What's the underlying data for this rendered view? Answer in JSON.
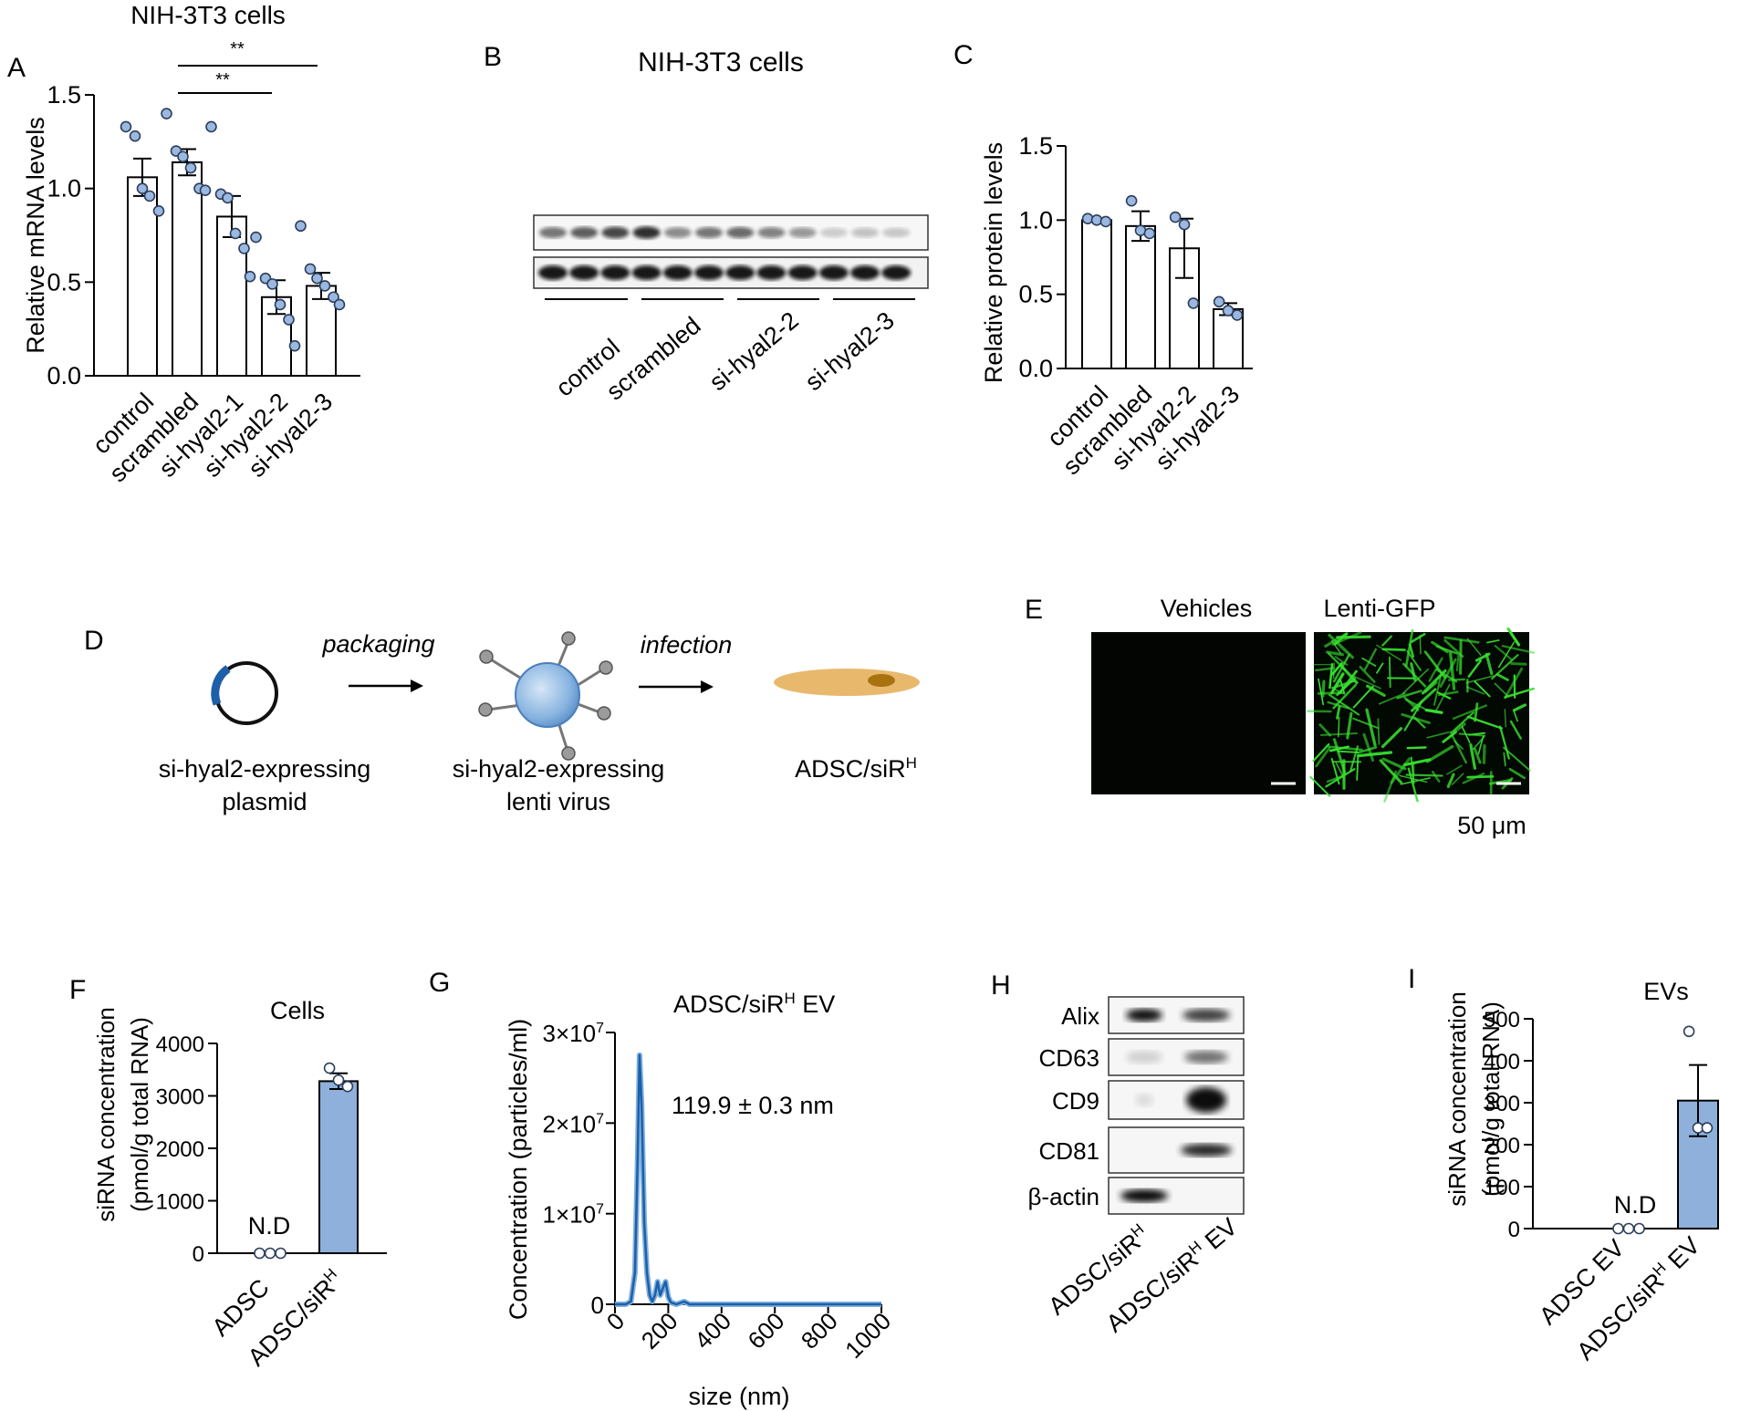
{
  "colors": {
    "bar_blue": "#8eb0da",
    "dot_blue": "#9bb8e0",
    "line_blue": "#1d5fa8",
    "gfp_green": "#38e030",
    "dark": "#050505"
  },
  "panels": {
    "A": {
      "letter": "A",
      "title": "NIH-3T3 cells",
      "sig": [
        "**",
        "**"
      ]
    },
    "B": {
      "letter": "B",
      "title": "NIH-3T3 cells",
      "groups": [
        "control",
        "scrambled",
        "si-hyal2-2",
        "si-hyal2-3"
      ]
    },
    "C": {
      "letter": "C"
    },
    "D": {
      "letter": "D",
      "step1": "packaging",
      "step2": "infection",
      "item1_line1": "si-hyal2-expressing",
      "item1_line2": "plasmid",
      "item2_line1": "si-hyal2-expressing",
      "item2_line2": "lenti virus",
      "item3": "ADSC/siR",
      "item3_sup": "H"
    },
    "E": {
      "letter": "E",
      "left_label": "Vehicles",
      "right_label": "Lenti-GFP",
      "scale": "50 μm"
    },
    "F": {
      "letter": "F",
      "title": "Cells",
      "nd": "N.D"
    },
    "G": {
      "letter": "G",
      "title_main": "ADSC/siR",
      "title_sup": "H",
      "title_tail": " EV",
      "annotation": "119.9 ± 0.3 nm"
    },
    "H": {
      "letter": "H",
      "bands": [
        "Alix",
        "CD63",
        "CD9",
        "CD81",
        "β-actin"
      ],
      "lane1": "ADSC/siR",
      "lane1_sup": "H",
      "lane2": "ADSC/siR",
      "lane2_sup": "H",
      "lane2_tail": " EV"
    },
    "I": {
      "letter": "I",
      "title": "EVs",
      "nd": "N.D"
    }
  },
  "chart_data": [
    {
      "id": "A",
      "type": "bar",
      "categories": [
        "control",
        "scrambled",
        "si-hyal2-1",
        "si-hyal2-2",
        "si-hyal2-3"
      ],
      "values": [
        1.06,
        1.14,
        0.85,
        0.42,
        0.48
      ],
      "errors": [
        0.1,
        0.07,
        0.11,
        0.09,
        0.07
      ],
      "points": [
        [
          1.33,
          1.28,
          1.0,
          0.96,
          0.88
        ],
        [
          1.4,
          1.2,
          1.17,
          1.11,
          1.0,
          0.99
        ],
        [
          1.33,
          0.97,
          0.95,
          0.76,
          0.68,
          0.53
        ],
        [
          0.74,
          0.52,
          0.49,
          0.38,
          0.3,
          0.16
        ],
        [
          0.8,
          0.57,
          0.52,
          0.48,
          0.42,
          0.38
        ]
      ],
      "ylabel": "Relative mRNA levels",
      "ylim": [
        0,
        1.5
      ],
      "yticks": [
        "0.0",
        "0.5",
        "1.0",
        "1.5"
      ]
    },
    {
      "id": "C",
      "type": "bar",
      "categories": [
        "control",
        "scrambled",
        "si-hyal2-2",
        "si-hyal2-3"
      ],
      "values": [
        1.0,
        0.96,
        0.81,
        0.4
      ],
      "errors": [
        0.01,
        0.1,
        0.2,
        0.04
      ],
      "points": [
        [
          1.01,
          1.0,
          0.99
        ],
        [
          1.13,
          0.93,
          0.91
        ],
        [
          1.02,
          0.97,
          0.44
        ],
        [
          0.45,
          0.39,
          0.36
        ]
      ],
      "ylabel": "Relative protein levels",
      "ylim": [
        0,
        1.5
      ],
      "yticks": [
        "0.0",
        "0.5",
        "1.0",
        "1.5"
      ]
    },
    {
      "id": "F",
      "type": "bar",
      "categories": [
        "ADSC",
        "ADSC/siRH"
      ],
      "values": [
        0,
        3280
      ],
      "errors": [
        0,
        150
      ],
      "points": [
        [
          0,
          0,
          0
        ],
        [
          3530,
          3300,
          3180
        ]
      ],
      "ylabel_lines": [
        "siRNA concentration",
        "(pmol/g total RNA)"
      ],
      "ylim": [
        0,
        4000
      ],
      "yticks": [
        "0",
        "1000",
        "2000",
        "3000",
        "4000"
      ]
    },
    {
      "id": "G",
      "type": "line",
      "xlabel": "size (nm)",
      "ylabel": "Concentration (particles/ml)",
      "xlim": [
        0,
        1000
      ],
      "ylim": [
        0,
        30000000
      ],
      "xticks": [
        "0",
        "200",
        "400",
        "600",
        "800",
        "1000"
      ],
      "yticks": [
        "0",
        "1×10",
        "2×10",
        "3×10"
      ],
      "ytick_exp": "7",
      "x": [
        0,
        40,
        60,
        75,
        85,
        92,
        100,
        110,
        120,
        130,
        140,
        150,
        160,
        170,
        180,
        190,
        200,
        210,
        230,
        260,
        280,
        300,
        400,
        1000
      ],
      "y": [
        0,
        0,
        300000,
        3500000,
        16000000,
        27500000,
        22000000,
        9000000,
        3500000,
        1000000,
        300000,
        1000000,
        2500000,
        1000000,
        1800000,
        2500000,
        800000,
        200000,
        0,
        300000,
        0,
        0,
        0,
        0
      ]
    },
    {
      "id": "I",
      "type": "bar",
      "categories": [
        "ADSC EV",
        "ADSC/siRH EV"
      ],
      "values": [
        0,
        305
      ],
      "errors": [
        0,
        85
      ],
      "points": [
        [
          0,
          0,
          0
        ],
        [
          470,
          240,
          240
        ]
      ],
      "ylabel_lines": [
        "siRNA concentration",
        "(pmol/g total RNA)"
      ],
      "ylim": [
        0,
        500
      ],
      "yticks": [
        "0",
        "100",
        "200",
        "300",
        "400",
        "500"
      ]
    }
  ]
}
